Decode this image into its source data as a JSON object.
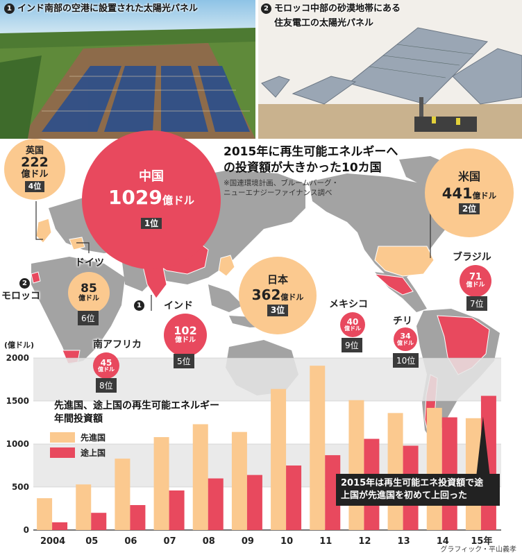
{
  "photos": [
    {
      "num": "1",
      "caption": "インド南部の空港に設置された太陽光パネル"
    },
    {
      "num": "2",
      "caption_line1": "モロッコ中部の砂漠地帯にある",
      "caption_line2": "住友電工の太陽光パネル"
    }
  ],
  "map": {
    "title_line1": "2015年に再生可能エネルギーへ",
    "title_line2": "の投資額が大きかった10カ国",
    "note_line1": "※国連環境計画、ブルームバーグ・",
    "note_line2": "ニューエナジーファイナンス調べ",
    "countries": [
      {
        "id": "china",
        "name": "中国",
        "value": "1029",
        "unit": "億ドル",
        "rank": "1位",
        "group": "developing"
      },
      {
        "id": "usa",
        "name": "米国",
        "value": "441",
        "unit": "億ドル",
        "rank": "2位",
        "group": "developed"
      },
      {
        "id": "japan",
        "name": "日本",
        "value": "362",
        "unit": "億ドル",
        "rank": "3位",
        "group": "developed"
      },
      {
        "id": "uk",
        "name": "英国",
        "value": "222",
        "unit": "億ドル",
        "rank": "4位",
        "group": "developed"
      },
      {
        "id": "india",
        "name": "インド",
        "value": "102",
        "unit": "億ドル",
        "rank": "5位",
        "group": "developing"
      },
      {
        "id": "germany",
        "name": "ドイツ",
        "value": "85",
        "unit": "億ドル",
        "rank": "6位",
        "group": "developed"
      },
      {
        "id": "brazil",
        "name": "ブラジル",
        "value": "71",
        "unit": "億ドル",
        "rank": "7位",
        "group": "developing"
      },
      {
        "id": "southafrica",
        "name": "南アフリカ",
        "value": "45",
        "unit": "億ドル",
        "rank": "8位",
        "group": "developing"
      },
      {
        "id": "mexico",
        "name": "メキシコ",
        "value": "40",
        "unit": "億ドル",
        "rank": "9位",
        "group": "developing"
      },
      {
        "id": "chile",
        "name": "チリ",
        "value": "34",
        "unit": "億ドル",
        "rank": "10位",
        "group": "developing"
      }
    ],
    "markers": [
      {
        "num": "2",
        "name": "モロッコ"
      },
      {
        "num": "1",
        "name": ""
      }
    ]
  },
  "chart_data": {
    "type": "bar",
    "title_line1": "先進国、途上国の再生可能エネルギー",
    "title_line2": "年間投資額",
    "y_unit": "(億ドル)",
    "ylim": [
      0,
      2000
    ],
    "yticks": [
      0,
      500,
      1000,
      1500,
      2000
    ],
    "categories": [
      "2004",
      "05",
      "06",
      "07",
      "08",
      "09",
      "10",
      "11",
      "12",
      "13",
      "14",
      "15年"
    ],
    "series": [
      {
        "name": "先進国",
        "color": "#fbc98f",
        "values": [
          370,
          530,
          830,
          1080,
          1230,
          1140,
          1640,
          1910,
          1510,
          1360,
          1420,
          1300
        ]
      },
      {
        "name": "途上国",
        "color": "#e8495e",
        "values": [
          90,
          200,
          290,
          460,
          600,
          640,
          750,
          870,
          1060,
          980,
          1310,
          1560
        ]
      }
    ],
    "annotation_line1": "2015年は再生可能エネ投資額で途",
    "annotation_line2": "上国が先進国を初めて上回った",
    "grid_bands": true
  },
  "credit": "グラフィック・平山義孝",
  "colors": {
    "developed": "#fbc98f",
    "developing": "#e8495e",
    "land": "#9a9a9a",
    "dark": "#3a3a3a"
  }
}
